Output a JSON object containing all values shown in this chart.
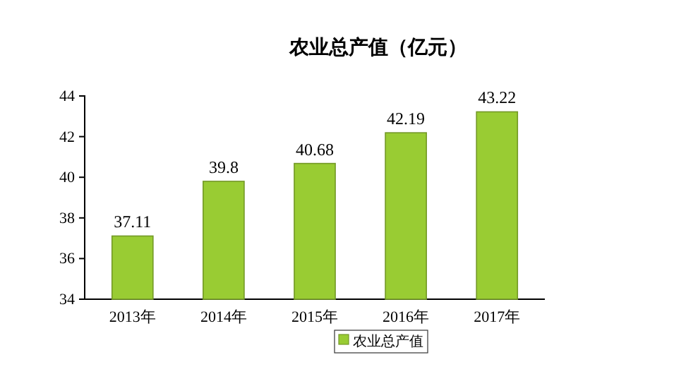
{
  "chart_data": {
    "type": "bar",
    "title": "农业总产值（亿元）",
    "categories": [
      "2013年",
      "2014年",
      "2015年",
      "2016年",
      "2017年"
    ],
    "series": [
      {
        "name": "农业总产值",
        "color": "#99cc33",
        "values": [
          37.11,
          39.8,
          40.68,
          42.19,
          43.22
        ]
      }
    ],
    "ylim": [
      34,
      44
    ],
    "yticks": [
      34,
      36,
      38,
      40,
      42,
      44
    ],
    "data_labels": true,
    "legend": "bottom",
    "grid": false
  }
}
